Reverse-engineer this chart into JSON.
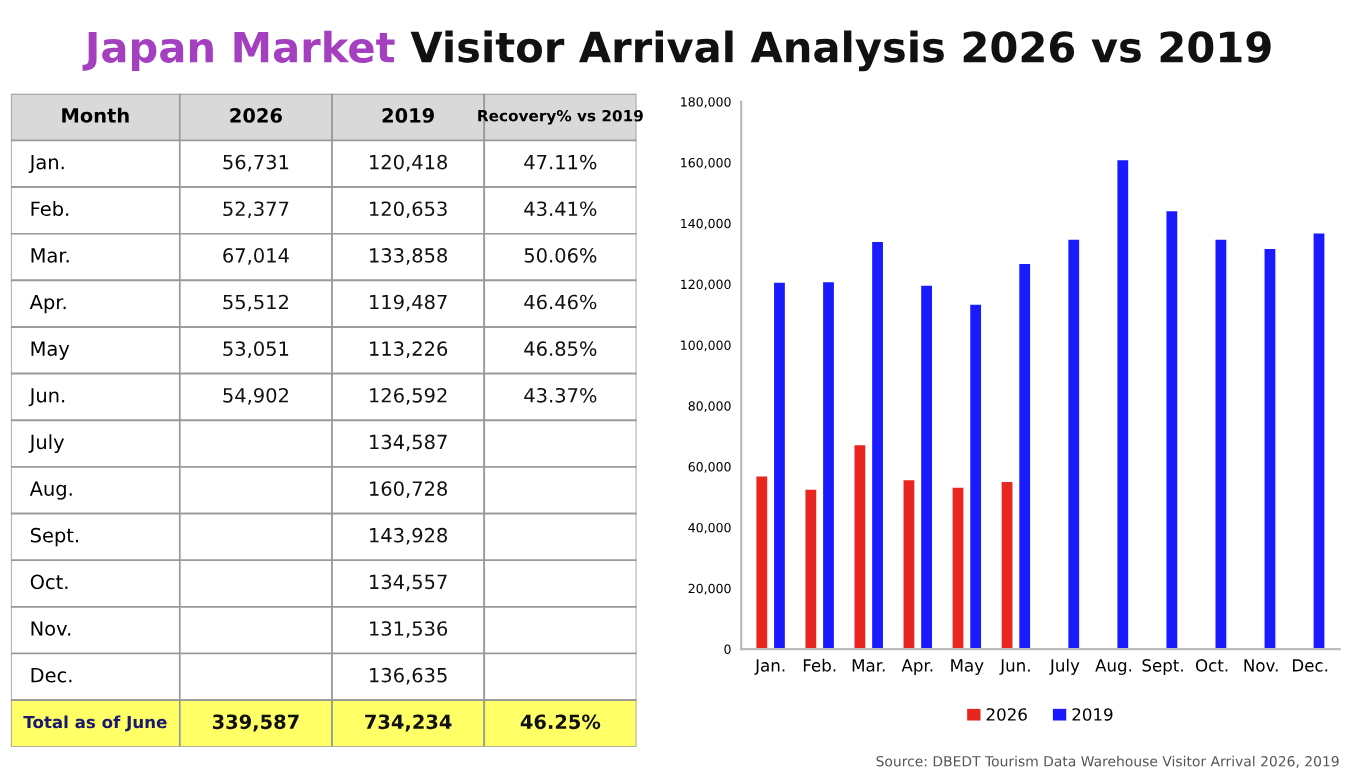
{
  "chart_data": [
    {
      "type": "other",
      "annotations": [
        "Month"
      ],
      "categories": [
        "Jan.",
        "Feb.",
        "Mar.",
        "Apr.",
        "May",
        "Jun.",
        "July",
        "Aug.",
        "Sept.",
        "Oct.",
        "Nov.",
        "Dec.",
        "Total as of June"
      ],
      "series": [
        {
          "name": "2026",
          "colors": [
            "#ffffff",
            "#ffffff",
            "#ffffff",
            "#ffffff",
            "#ffffff",
            "#ffffff",
            "#ffffff",
            "#ffffff",
            "#ffffff",
            "#ffffff",
            "#ffffff",
            "#ffffff",
            "#ffff66"
          ],
          "values": [
            56731,
            52377,
            67014,
            55512,
            53051,
            54902,
            null,
            null,
            null,
            null,
            null,
            null,
            339587
          ],
          "value_labels": [
            "56,731",
            "52,377",
            "67,014",
            "55,512",
            "53,051",
            "54,902",
            null,
            null,
            null,
            null,
            null,
            null,
            "339,587"
          ]
        },
        {
          "name": "2019",
          "colors": [
            "#ffffff",
            "#ffffff",
            "#ffffff",
            "#ffffff",
            "#ffffff",
            "#ffffff",
            "#ffffff",
            "#ffffff",
            "#ffffff",
            "#ffffff",
            "#ffffff",
            "#ffffff",
            "#ffff66"
          ],
          "values": [
            120418,
            120653,
            133858,
            119487,
            113226,
            126592,
            134587,
            160728,
            143928,
            134557,
            131536,
            136635,
            734234
          ],
          "value_labels": [
            "120,418",
            "120,653",
            "133,858",
            "119,487",
            "113,226",
            "126,592",
            "134,587",
            "160,728",
            "143,928",
            "134,557",
            "131,536",
            "136,635",
            "734,234"
          ]
        },
        {
          "name": "Recovery% vs 2019",
          "colors": [
            "#ffffff",
            "#ffffff",
            "#ffffff",
            "#ffffff",
            "#ffffff",
            "#ffffff",
            "#ffffff",
            "#ffffff",
            "#ffffff",
            "#ffffff",
            "#ffffff",
            "#ffffff",
            "#ffff66"
          ],
          "values": [
            47.11,
            43.41,
            50.06,
            46.46,
            46.85,
            43.37,
            null,
            null,
            null,
            null,
            null,
            null,
            46.25
          ],
          "value_labels": [
            "47.11%",
            "43.41%",
            "50.06%",
            "46.46%",
            "46.85%",
            "43.37%",
            null,
            null,
            null,
            null,
            null,
            null,
            "46.25%"
          ]
        }
      ]
    },
    {
      "type": "bar",
      "title": "Japan Market Visitor Arrival Analysis 2026 vs 2019",
      "categories": [
        "Jan.",
        "Feb.",
        "Mar.",
        "Apr.",
        "May",
        "Jun.",
        "July",
        "Aug.",
        "Sept.",
        "Oct.",
        "Nov.",
        "Dec."
      ],
      "series": [
        {
          "name": "2026",
          "color": "#e8251f",
          "values": [
            56731,
            52377,
            67014,
            55512,
            53051,
            54902,
            null,
            null,
            null,
            null,
            null,
            null
          ]
        },
        {
          "name": "2019",
          "color": "#1a1aff",
          "values": [
            120418,
            120653,
            133858,
            119487,
            113226,
            126592,
            134587,
            160728,
            143928,
            134557,
            131536,
            136635
          ]
        }
      ],
      "ylim": [
        0,
        180000
      ],
      "yticks": [
        {
          "value": 0,
          "label": "0"
        },
        {
          "value": 20000,
          "label": "20,000"
        },
        {
          "value": 40000,
          "label": "40,000"
        },
        {
          "value": 60000,
          "label": "60,000"
        },
        {
          "value": 80000,
          "label": "80,000"
        },
        {
          "value": 100000,
          "label": "100,000"
        },
        {
          "value": 120000,
          "label": "120,000"
        },
        {
          "value": 140000,
          "label": "140,000"
        },
        {
          "value": 160000,
          "label": "160,000"
        },
        {
          "value": 180000,
          "label": "180,000"
        }
      ],
      "grid": false,
      "legend": "bottom",
      "annotations": [
        "Source: DBEDT Tourism Data Warehouse Visitor Arrival 2026, 2019"
      ]
    }
  ]
}
